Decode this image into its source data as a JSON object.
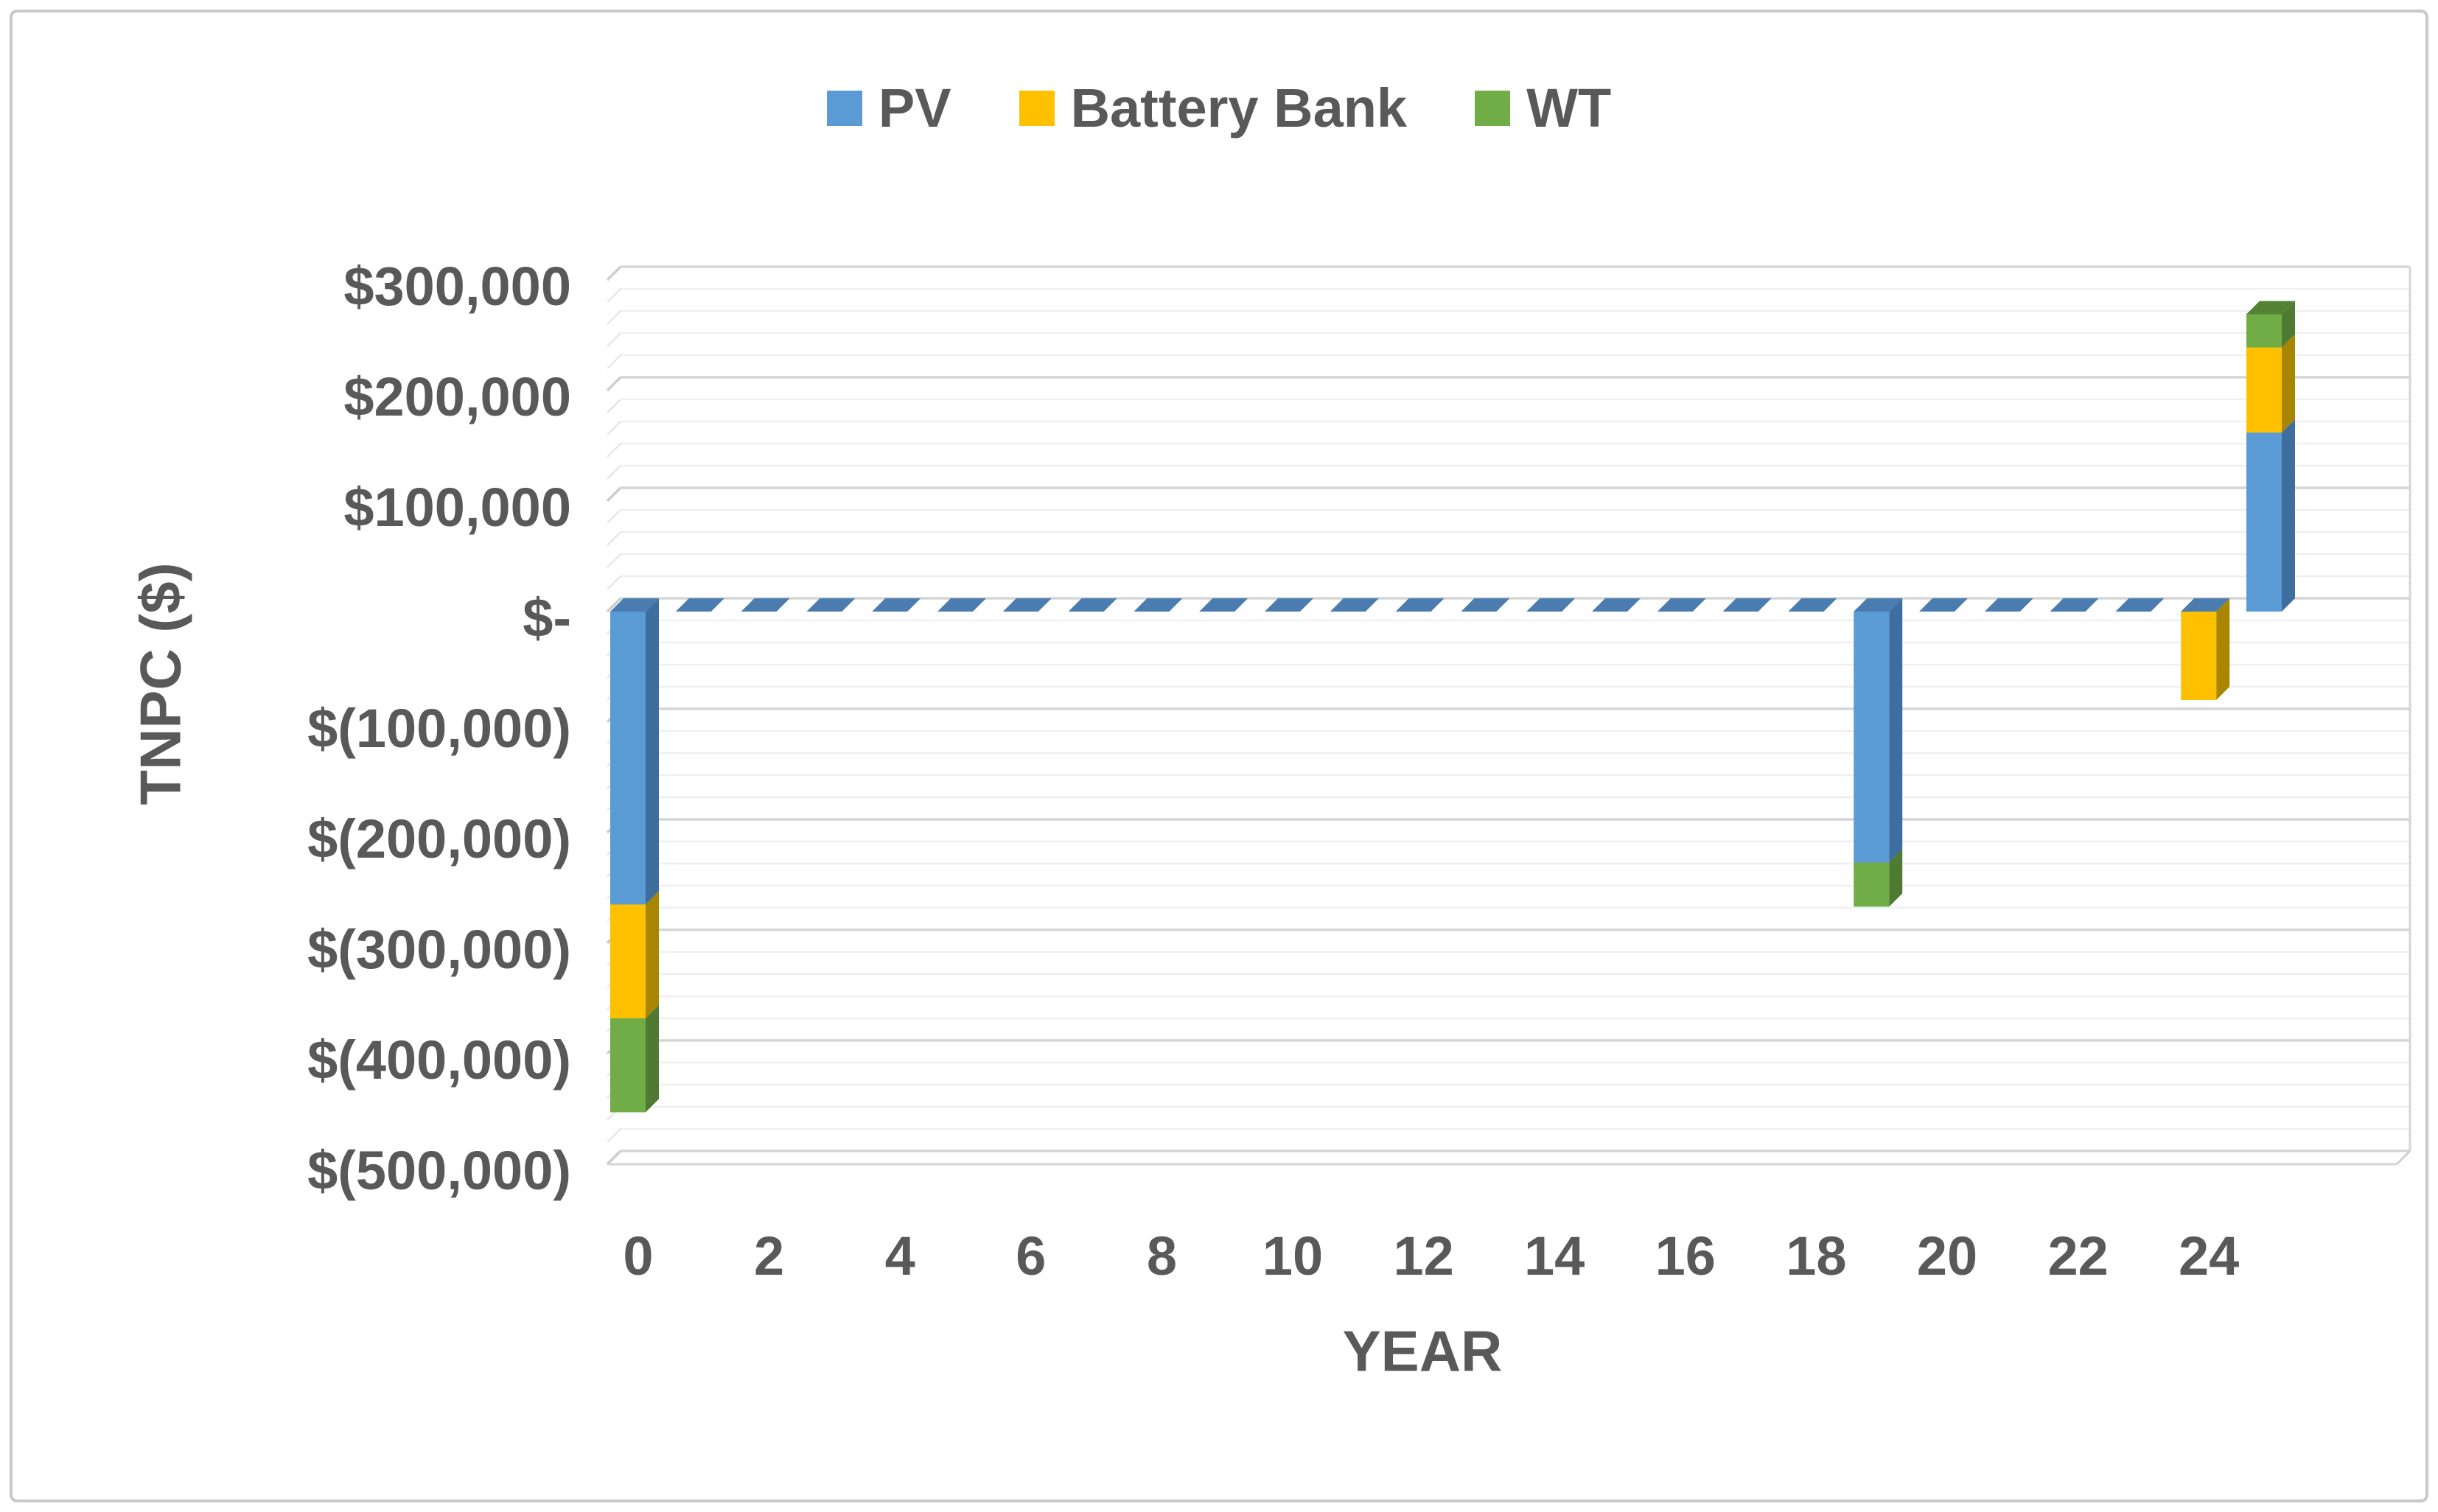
{
  "figure": {
    "background_color": "#FFFFFF",
    "border_color": "#C9C9C9",
    "text_color": "#595959"
  },
  "legend": {
    "items": [
      {
        "label": "PV",
        "color": "#5B9BD5"
      },
      {
        "label": "Battery Bank",
        "color": "#FFC000"
      },
      {
        "label": "WT",
        "color": "#70AD47"
      }
    ]
  },
  "chart_data": {
    "type": "bar",
    "stacked": true,
    "effect": "3d-extruded",
    "title": "",
    "xlabel": "YEAR",
    "ylabel": "TNPC ($)",
    "categories": [
      0,
      1,
      2,
      3,
      4,
      5,
      6,
      7,
      8,
      9,
      10,
      11,
      12,
      13,
      14,
      15,
      16,
      17,
      18,
      19,
      20,
      21,
      22,
      23,
      24,
      25
    ],
    "series": [
      {
        "name": "PV",
        "color": "#5B9BD5",
        "side_color": "#3D6E9E",
        "top_color": "#4A7CAF",
        "values": [
          -265000,
          0,
          0,
          0,
          0,
          0,
          0,
          0,
          0,
          0,
          0,
          0,
          0,
          0,
          0,
          0,
          0,
          0,
          0,
          -227000,
          0,
          0,
          0,
          0,
          0,
          162000
        ]
      },
      {
        "name": "Battery Bank",
        "color": "#FFC000",
        "side_color": "#A98600",
        "top_color": "#C9A227",
        "values": [
          -103000,
          0,
          0,
          0,
          0,
          0,
          0,
          0,
          0,
          0,
          0,
          0,
          0,
          0,
          0,
          0,
          0,
          0,
          0,
          0,
          0,
          0,
          0,
          0,
          -80000,
          77000
        ]
      },
      {
        "name": "WT",
        "color": "#70AD47",
        "side_color": "#4F7A31",
        "top_color": "#548235",
        "values": [
          -85000,
          0,
          0,
          0,
          0,
          0,
          0,
          0,
          0,
          0,
          0,
          0,
          0,
          0,
          0,
          0,
          0,
          0,
          0,
          -40000,
          0,
          0,
          0,
          0,
          0,
          30000
        ]
      }
    ],
    "ylim": [
      -500000,
      300000
    ],
    "y_major_step": 100000,
    "y_minor_step": 20000,
    "y_ticks": [
      {
        "value": 300000,
        "label": "$300,000"
      },
      {
        "value": 200000,
        "label": "$200,000"
      },
      {
        "value": 100000,
        "label": "$100,000"
      },
      {
        "value": 0,
        "label": "$-"
      },
      {
        "value": -100000,
        "label": "$(100,000)"
      },
      {
        "value": -200000,
        "label": "$(200,000)"
      },
      {
        "value": -300000,
        "label": "$(300,000)"
      },
      {
        "value": -400000,
        "label": "$(400,000)"
      },
      {
        "value": -500000,
        "label": "$(500,000)"
      }
    ],
    "x_ticks": [
      {
        "value": 0,
        "label": "0"
      },
      {
        "value": 2,
        "label": "2"
      },
      {
        "value": 4,
        "label": "4"
      },
      {
        "value": 6,
        "label": "6"
      },
      {
        "value": 8,
        "label": "8"
      },
      {
        "value": 10,
        "label": "10"
      },
      {
        "value": 12,
        "label": "12"
      },
      {
        "value": 14,
        "label": "14"
      },
      {
        "value": 16,
        "label": "16"
      },
      {
        "value": 18,
        "label": "18"
      },
      {
        "value": 20,
        "label": "20"
      },
      {
        "value": 22,
        "label": "22"
      },
      {
        "value": 24,
        "label": "24"
      }
    ],
    "zero_marker": {
      "style": "dashed-flat-tiles",
      "color": "#4A7CAF",
      "note": "flat zero-value tiles drawn at $0 for every year without a PV bar"
    },
    "grid": {
      "minor_color": "#EFEFEF",
      "major_color": "#D5D5D5",
      "wall_minor_color": "#E7E7E7",
      "wall_major_color": "#CDCDCD",
      "legend_position": "top-center"
    }
  }
}
